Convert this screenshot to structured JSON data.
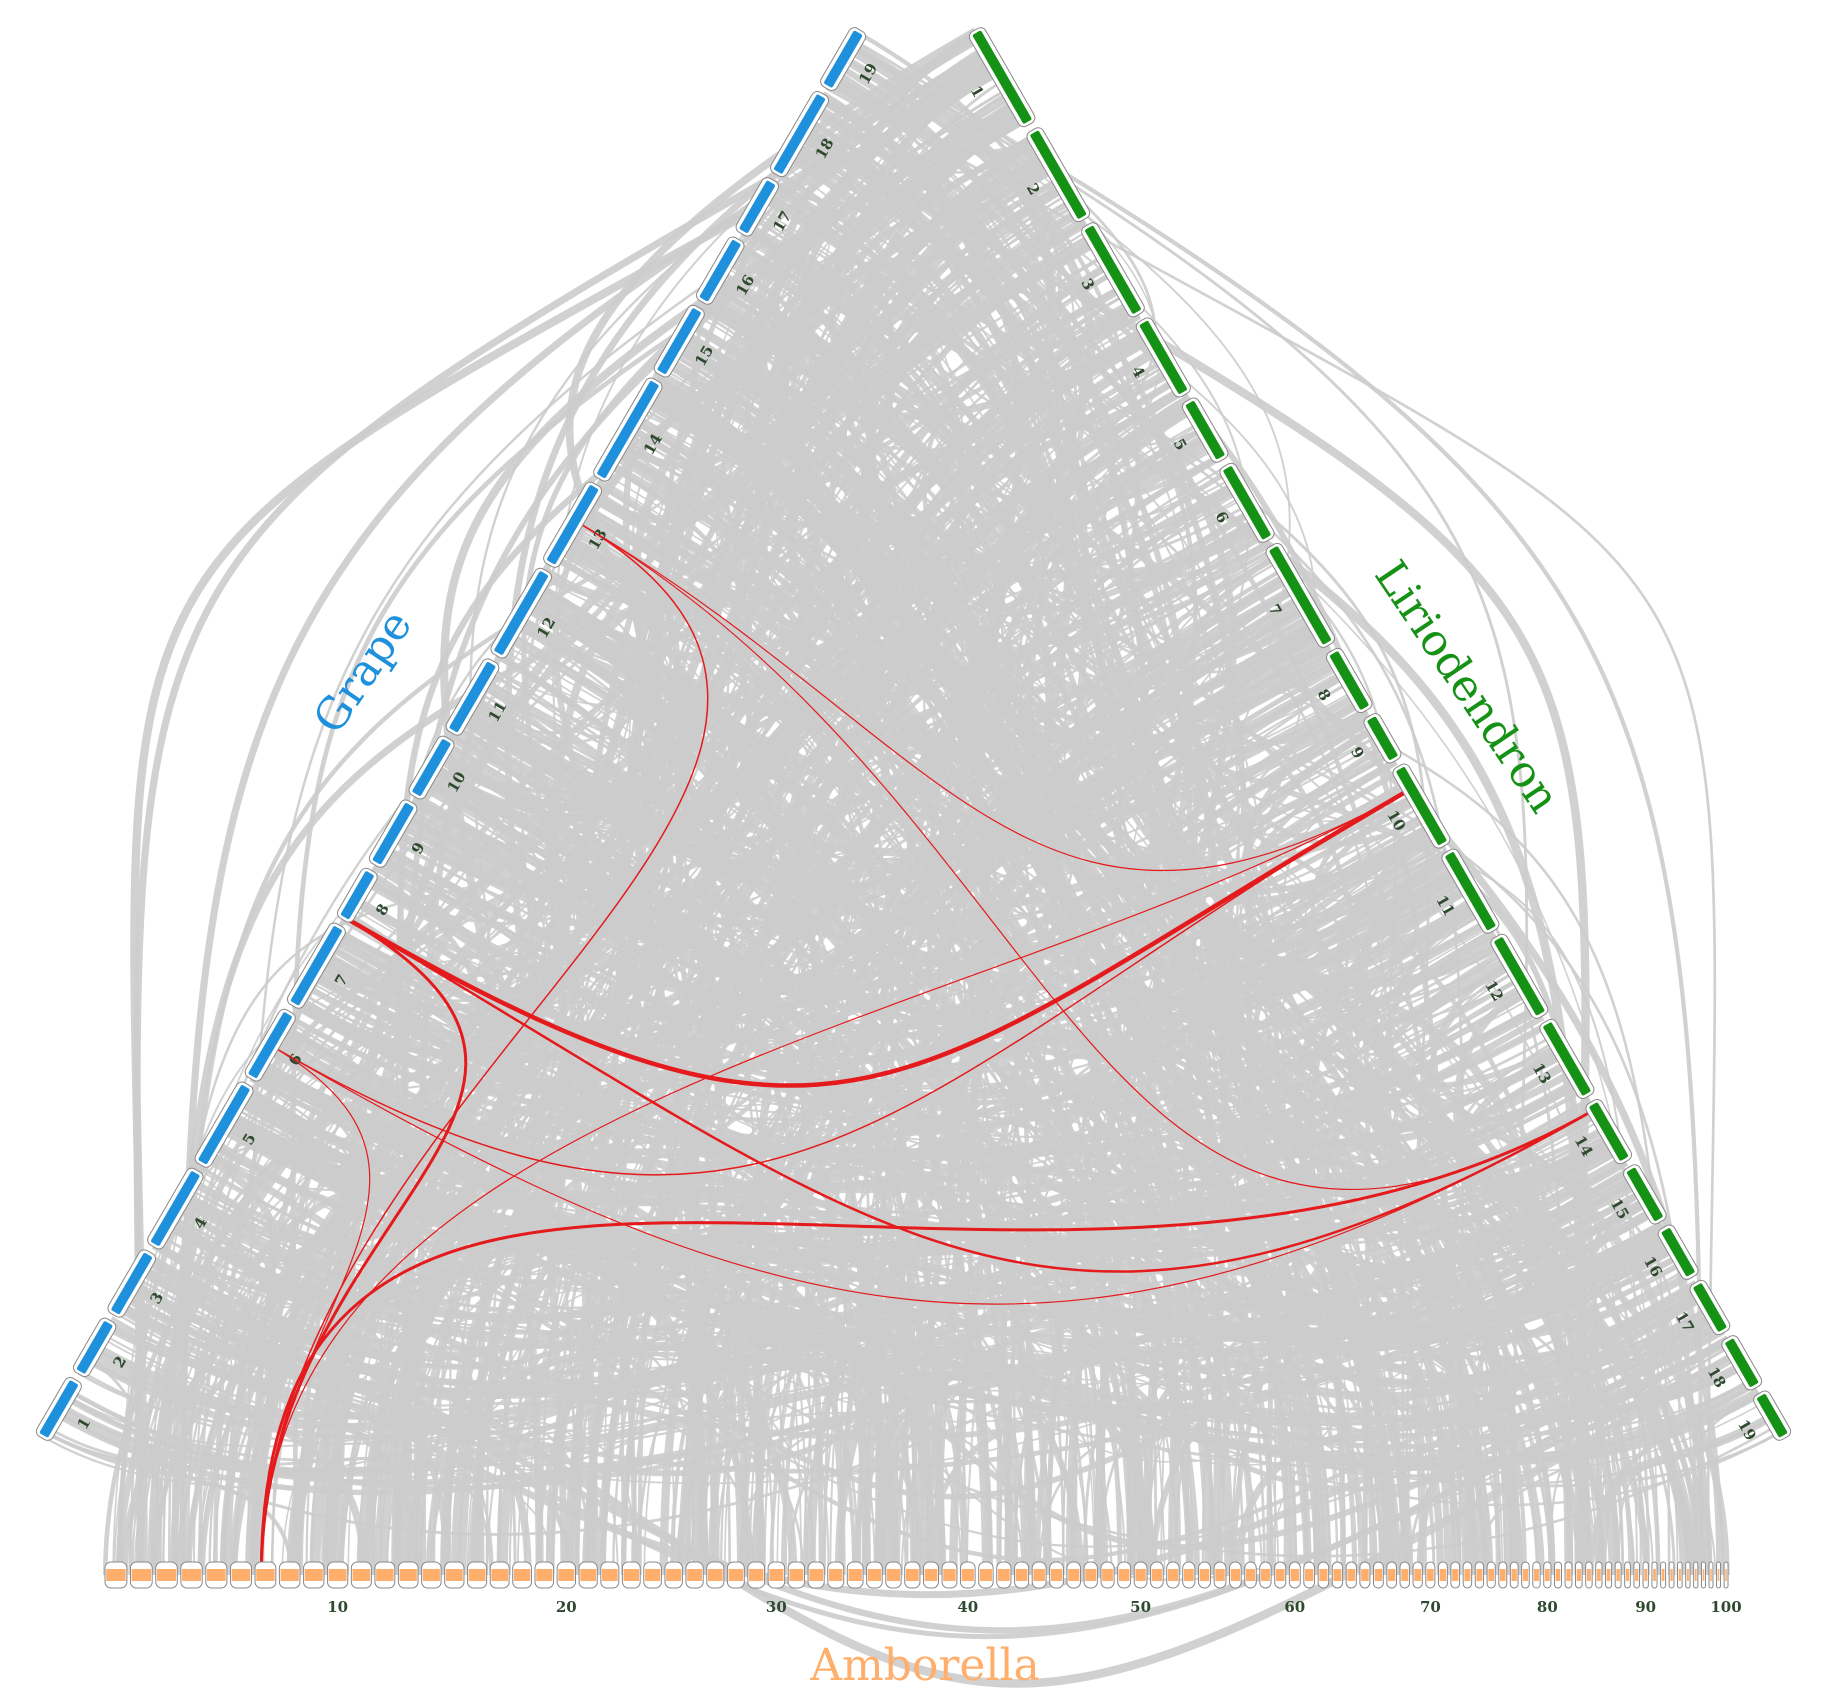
{
  "species": {
    "grape": {
      "label": "Grape",
      "color": "#1E90DC",
      "chromosomes": [
        "1",
        "2",
        "3",
        "4",
        "5",
        "6",
        "7",
        "8",
        "9",
        "10",
        "11",
        "12",
        "13",
        "14",
        "15",
        "16",
        "17",
        "18",
        "19"
      ]
    },
    "liriodendron": {
      "label": "Liriodendron",
      "color": "#159115",
      "chromosomes": [
        "1",
        "2",
        "3",
        "4",
        "5",
        "6",
        "7",
        "8",
        "9",
        "10",
        "11",
        "12",
        "13",
        "14",
        "15",
        "16",
        "17",
        "18",
        "19"
      ]
    },
    "amborella": {
      "label": "Amborella",
      "color": "#FFAE6B",
      "scaffold_count": 100,
      "tick_labels": [
        "10",
        "20",
        "30",
        "40",
        "50",
        "60",
        "70",
        "80",
        "90",
        "100"
      ]
    }
  },
  "colors": {
    "background_links": "#CCCCCC",
    "highlight_links": "#E41A1C",
    "chromosome_number": "#2f4a2f"
  }
}
